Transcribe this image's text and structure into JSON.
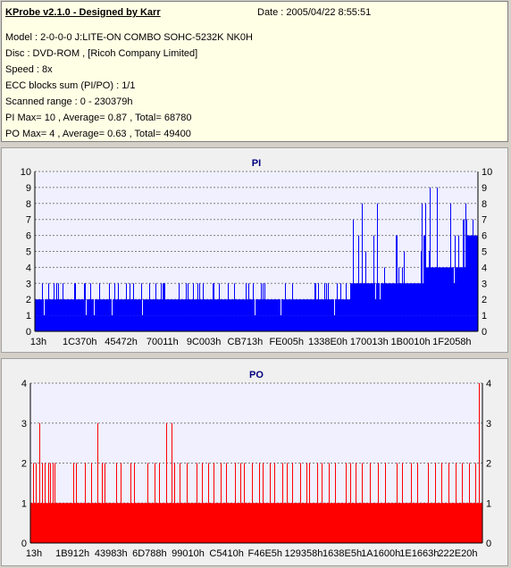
{
  "header": {
    "title": "KProbe v2.1.0 - Designed by Karr",
    "date": "Date : 2005/04/22 8:55:51",
    "lines": [
      "Model : 2-0-0-0 J:LITE-ON COMBO SOHC-5232K NK0H",
      "Disc : DVD-ROM ,  [Ricoh Company Limited]",
      "Speed : 8x",
      "ECC blocks sum (PI/PO) : 1/1",
      "Scanned range : 0 - 230379h",
      "PI Max= 10 , Average= 0.87 , Total= 68780",
      "PO Max= 4 , Average= 0.63 , Total= 49400"
    ]
  },
  "colors": {
    "pi": "#0000ff",
    "po": "#ff0000",
    "plot_bg": "#f0f0ff"
  },
  "chart_data": [
    {
      "type": "bar",
      "title": "PI",
      "ylim": [
        0,
        10
      ],
      "yticks": [
        0,
        1,
        2,
        3,
        4,
        5,
        6,
        7,
        8,
        9,
        10
      ],
      "xticks": [
        "13h",
        "1C370h",
        "45472h",
        "70011h",
        "9C003h",
        "CB713h",
        "FE005h",
        "1338E0h",
        "170013h",
        "1B0010h",
        "1F2058h"
      ],
      "x_range": [
        0,
        230379
      ],
      "segments": [
        {
          "from": 0,
          "to": 0.64,
          "base": 2,
          "spike_max": 3,
          "spike_rate": 0.12
        },
        {
          "from": 0.64,
          "to": 0.71,
          "base": 2,
          "spike_max": 3,
          "spike_rate": 0.2
        },
        {
          "from": 0.71,
          "to": 0.88,
          "base": 3,
          "spike_max": 8,
          "spike_rate": 0.22
        },
        {
          "from": 0.88,
          "to": 0.97,
          "base": 4,
          "spike_max": 9,
          "spike_rate": 0.3
        },
        {
          "from": 0.97,
          "to": 1.0,
          "base": 6,
          "spike_max": 10,
          "spike_rate": 0.45
        }
      ]
    },
    {
      "type": "bar",
      "title": "PO",
      "ylim": [
        0,
        4
      ],
      "yticks": [
        0,
        1,
        2,
        3,
        4
      ],
      "xticks": [
        "13h",
        "1B912h",
        "43983h",
        "6D788h",
        "99010h",
        "C5410h",
        "F46E5h",
        "129358h",
        "1638E5h",
        "1A1600h",
        "1E1663h",
        "222E20h"
      ],
      "x_range": [
        0,
        230379
      ],
      "base": 1,
      "spikes": [
        [
          0.006,
          2
        ],
        [
          0.012,
          2
        ],
        [
          0.02,
          3
        ],
        [
          0.025,
          2
        ],
        [
          0.032,
          2
        ],
        [
          0.04,
          2
        ],
        [
          0.044,
          2
        ],
        [
          0.05,
          2
        ],
        [
          0.054,
          2
        ],
        [
          0.095,
          2
        ],
        [
          0.1,
          2
        ],
        [
          0.12,
          2
        ],
        [
          0.135,
          2
        ],
        [
          0.148,
          3
        ],
        [
          0.158,
          2
        ],
        [
          0.165,
          2
        ],
        [
          0.19,
          2
        ],
        [
          0.2,
          2
        ],
        [
          0.222,
          2
        ],
        [
          0.23,
          2
        ],
        [
          0.258,
          2
        ],
        [
          0.275,
          2
        ],
        [
          0.285,
          2
        ],
        [
          0.3,
          3
        ],
        [
          0.312,
          3
        ],
        [
          0.318,
          2
        ],
        [
          0.33,
          2
        ],
        [
          0.345,
          2
        ],
        [
          0.368,
          2
        ],
        [
          0.38,
          2
        ],
        [
          0.393,
          2
        ],
        [
          0.406,
          2
        ],
        [
          0.42,
          2
        ],
        [
          0.433,
          2
        ],
        [
          0.452,
          2
        ],
        [
          0.464,
          2
        ],
        [
          0.472,
          2
        ],
        [
          0.49,
          2
        ],
        [
          0.505,
          2
        ],
        [
          0.514,
          2
        ],
        [
          0.53,
          2
        ],
        [
          0.54,
          2
        ],
        [
          0.558,
          2
        ],
        [
          0.567,
          2
        ],
        [
          0.58,
          2
        ],
        [
          0.596,
          2
        ],
        [
          0.61,
          2
        ],
        [
          0.616,
          2
        ],
        [
          0.635,
          2
        ],
        [
          0.645,
          2
        ],
        [
          0.66,
          2
        ],
        [
          0.674,
          2
        ],
        [
          0.698,
          2
        ],
        [
          0.707,
          2
        ],
        [
          0.72,
          2
        ],
        [
          0.733,
          2
        ],
        [
          0.75,
          2
        ],
        [
          0.768,
          2
        ],
        [
          0.785,
          2
        ],
        [
          0.81,
          2
        ],
        [
          0.822,
          2
        ],
        [
          0.842,
          2
        ],
        [
          0.855,
          2
        ],
        [
          0.88,
          2
        ],
        [
          0.895,
          2
        ],
        [
          0.91,
          2
        ],
        [
          0.925,
          2
        ],
        [
          0.94,
          2
        ],
        [
          0.955,
          2
        ],
        [
          0.97,
          2
        ],
        [
          0.985,
          2
        ],
        [
          0.993,
          4
        ]
      ]
    }
  ]
}
